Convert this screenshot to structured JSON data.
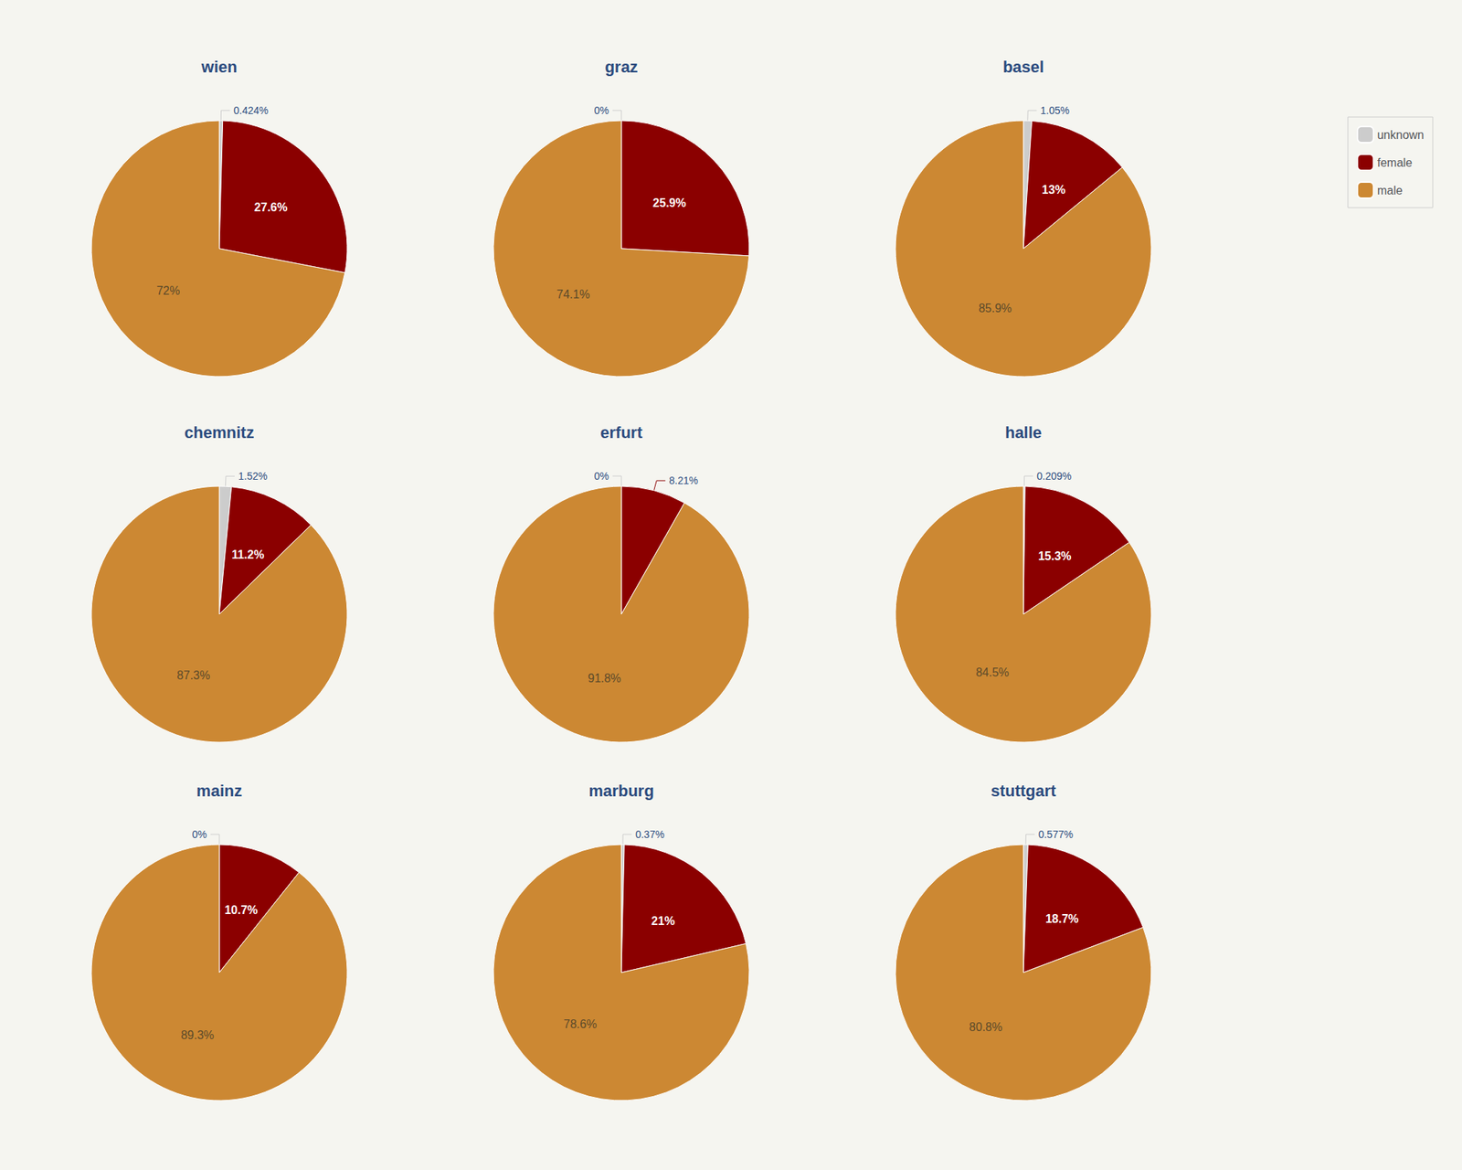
{
  "chart_data": [
    {
      "type": "pie",
      "title": "wien",
      "categories": [
        "unknown",
        "female",
        "male"
      ],
      "values": [
        0.424,
        27.6,
        72.0
      ],
      "value_labels": [
        "0.424%",
        "27.6%",
        "72%"
      ],
      "colors": [
        "#CCCCCC",
        "#8B0000",
        "#CC8833"
      ],
      "data_labels": true,
      "legend": "upper right"
    },
    {
      "type": "pie",
      "title": "graz",
      "categories": [
        "unknown",
        "female",
        "male"
      ],
      "values": [
        0.0,
        25.9,
        74.1
      ],
      "value_labels": [
        "0%",
        "25.9%",
        "74.1%"
      ],
      "colors": [
        "#CCCCCC",
        "#8B0000",
        "#CC8833"
      ],
      "data_labels": true,
      "legend": "upper right"
    },
    {
      "type": "pie",
      "title": "basel",
      "categories": [
        "unknown",
        "female",
        "male"
      ],
      "values": [
        1.05,
        13.0,
        85.9
      ],
      "value_labels": [
        "1.05%",
        "13%",
        "85.9%"
      ],
      "colors": [
        "#CCCCCC",
        "#8B0000",
        "#CC8833"
      ],
      "data_labels": true,
      "legend": "upper right"
    },
    {
      "type": "pie",
      "title": "chemnitz",
      "categories": [
        "unknown",
        "female",
        "male"
      ],
      "values": [
        1.52,
        11.2,
        87.3
      ],
      "value_labels": [
        "1.52%",
        "11.2%",
        "87.3%"
      ],
      "colors": [
        "#CCCCCC",
        "#8B0000",
        "#CC8833"
      ],
      "data_labels": true,
      "legend": "upper right"
    },
    {
      "type": "pie",
      "title": "erfurt",
      "categories": [
        "unknown",
        "female",
        "male"
      ],
      "values": [
        0.0,
        8.21,
        91.8
      ],
      "value_labels": [
        "0%",
        "8.21%",
        "91.8%"
      ],
      "colors": [
        "#CCCCCC",
        "#8B0000",
        "#CC8833"
      ],
      "data_labels": true,
      "legend": "upper right"
    },
    {
      "type": "pie",
      "title": "halle",
      "categories": [
        "unknown",
        "female",
        "male"
      ],
      "values": [
        0.209,
        15.3,
        84.5
      ],
      "value_labels": [
        "0.209%",
        "15.3%",
        "84.5%"
      ],
      "colors": [
        "#CCCCCC",
        "#8B0000",
        "#CC8833"
      ],
      "data_labels": true,
      "legend": "upper right"
    },
    {
      "type": "pie",
      "title": "mainz",
      "categories": [
        "unknown",
        "female",
        "male"
      ],
      "values": [
        0.0,
        10.7,
        89.3
      ],
      "value_labels": [
        "0%",
        "10.7%",
        "89.3%"
      ],
      "colors": [
        "#CCCCCC",
        "#8B0000",
        "#CC8833"
      ],
      "data_labels": true,
      "legend": "upper right"
    },
    {
      "type": "pie",
      "title": "marburg",
      "categories": [
        "unknown",
        "female",
        "male"
      ],
      "values": [
        0.37,
        21.0,
        78.6
      ],
      "value_labels": [
        "0.37%",
        "21%",
        "78.6%"
      ],
      "colors": [
        "#CCCCCC",
        "#8B0000",
        "#CC8833"
      ],
      "data_labels": true,
      "legend": "upper right"
    },
    {
      "type": "pie",
      "title": "stuttgart",
      "categories": [
        "unknown",
        "female",
        "male"
      ],
      "values": [
        0.577,
        18.7,
        80.8
      ],
      "value_labels": [
        "0.577%",
        "18.7%",
        "80.8%"
      ],
      "colors": [
        "#CCCCCC",
        "#8B0000",
        "#CC8833"
      ],
      "data_labels": true,
      "legend": "upper right"
    }
  ]
}
